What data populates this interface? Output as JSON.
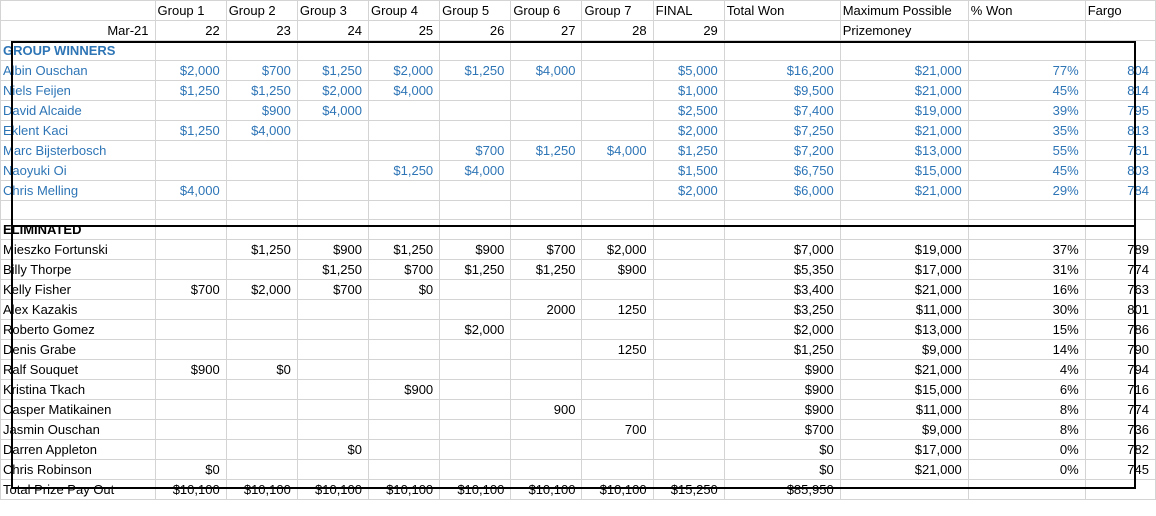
{
  "header": {
    "row1": [
      "",
      "Group 1",
      "Group 2",
      "Group 3",
      "Group 4",
      "Group 5",
      "Group 6",
      "Group 7",
      "FINAL",
      "Total Won",
      "Maximum Possible",
      "% Won",
      "Fargo"
    ],
    "row2": [
      "Mar-21",
      "22",
      "23",
      "24",
      "25",
      "26",
      "27",
      "28",
      "29",
      "",
      "Prizemoney",
      "",
      ""
    ]
  },
  "sections": [
    {
      "title": "GROUP WINNERS",
      "color": "#2e75b6",
      "rows": [
        [
          "Albin Ouschan",
          "$2,000",
          "$700",
          "$1,250",
          "$2,000",
          "$1,250",
          "$4,000",
          "",
          "$5,000",
          "$16,200",
          "$21,000",
          "77%",
          "804"
        ],
        [
          "Niels Feijen",
          "$1,250",
          "$1,250",
          "$2,000",
          "$4,000",
          "",
          "",
          "",
          "$1,000",
          "$9,500",
          "$21,000",
          "45%",
          "814"
        ],
        [
          "David Alcaide",
          "",
          "$900",
          "$4,000",
          "",
          "",
          "",
          "",
          "$2,500",
          "$7,400",
          "$19,000",
          "39%",
          "795"
        ],
        [
          "Eklent Kaci",
          "$1,250",
          "$4,000",
          "",
          "",
          "",
          "",
          "",
          "$2,000",
          "$7,250",
          "$21,000",
          "35%",
          "813"
        ],
        [
          "Marc Bijsterbosch",
          "",
          "",
          "",
          "",
          "$700",
          "$1,250",
          "$4,000",
          "$1,250",
          "$7,200",
          "$13,000",
          "55%",
          "761"
        ],
        [
          "Naoyuki Oi",
          "",
          "",
          "",
          "$1,250",
          "$4,000",
          "",
          "",
          "$1,500",
          "$6,750",
          "$15,000",
          "45%",
          "803"
        ],
        [
          "Chris Melling",
          "$4,000",
          "",
          "",
          "",
          "",
          "",
          "",
          "$2,000",
          "$6,000",
          "$21,000",
          "29%",
          "784"
        ]
      ]
    },
    {
      "title": "ELIMINATED",
      "color": "#000000",
      "rows": [
        [
          "Mieszko Fortunski",
          "",
          "$1,250",
          "$900",
          "$1,250",
          "$900",
          "$700",
          "$2,000",
          "",
          "$7,000",
          "$19,000",
          "37%",
          "789"
        ],
        [
          "Billy Thorpe",
          "",
          "",
          "$1,250",
          "$700",
          "$1,250",
          "$1,250",
          "$900",
          "",
          "$5,350",
          "$17,000",
          "31%",
          "774"
        ],
        [
          "Kelly Fisher",
          "$700",
          "$2,000",
          "$700",
          "$0",
          "",
          "",
          "",
          "",
          "$3,400",
          "$21,000",
          "16%",
          "763"
        ],
        [
          "Alex Kazakis",
          "",
          "",
          "",
          "",
          "",
          "2000",
          "1250",
          "",
          "$3,250",
          "$11,000",
          "30%",
          "801"
        ],
        [
          "Roberto Gomez",
          "",
          "",
          "",
          "",
          "$2,000",
          "",
          "",
          "",
          "$2,000",
          "$13,000",
          "15%",
          "786"
        ],
        [
          "Denis Grabe",
          "",
          "",
          "",
          "",
          "",
          "",
          "1250",
          "",
          "$1,250",
          "$9,000",
          "14%",
          "790"
        ],
        [
          "Ralf Souquet",
          "$900",
          "$0",
          "",
          "",
          "",
          "",
          "",
          "",
          "$900",
          "$21,000",
          "4%",
          "794"
        ],
        [
          "Kristina Tkach",
          "",
          "",
          "",
          "$900",
          "",
          "",
          "",
          "",
          "$900",
          "$15,000",
          "6%",
          "716"
        ],
        [
          "Casper Matikainen",
          "",
          "",
          "",
          "",
          "",
          "900",
          "",
          "",
          "$900",
          "$11,000",
          "8%",
          "774"
        ],
        [
          "Jasmin Ouschan",
          "",
          "",
          "",
          "",
          "",
          "",
          "700",
          "",
          "$700",
          "$9,000",
          "8%",
          "736"
        ],
        [
          "Darren Appleton",
          "",
          "",
          "$0",
          "",
          "",
          "",
          "",
          "",
          "$0",
          "$17,000",
          "0%",
          "782"
        ],
        [
          "Chris Robinson",
          "$0",
          "",
          "",
          "",
          "",
          "",
          "",
          "",
          "$0",
          "$21,000",
          "0%",
          "745"
        ]
      ]
    }
  ],
  "total_row": [
    "Total Prize Pay Out",
    "$10,100",
    "$10,100",
    "$10,100",
    "$10,100",
    "$10,100",
    "$10,100",
    "$10,100",
    "$15,250",
    "$85,950",
    "",
    "",
    ""
  ]
}
